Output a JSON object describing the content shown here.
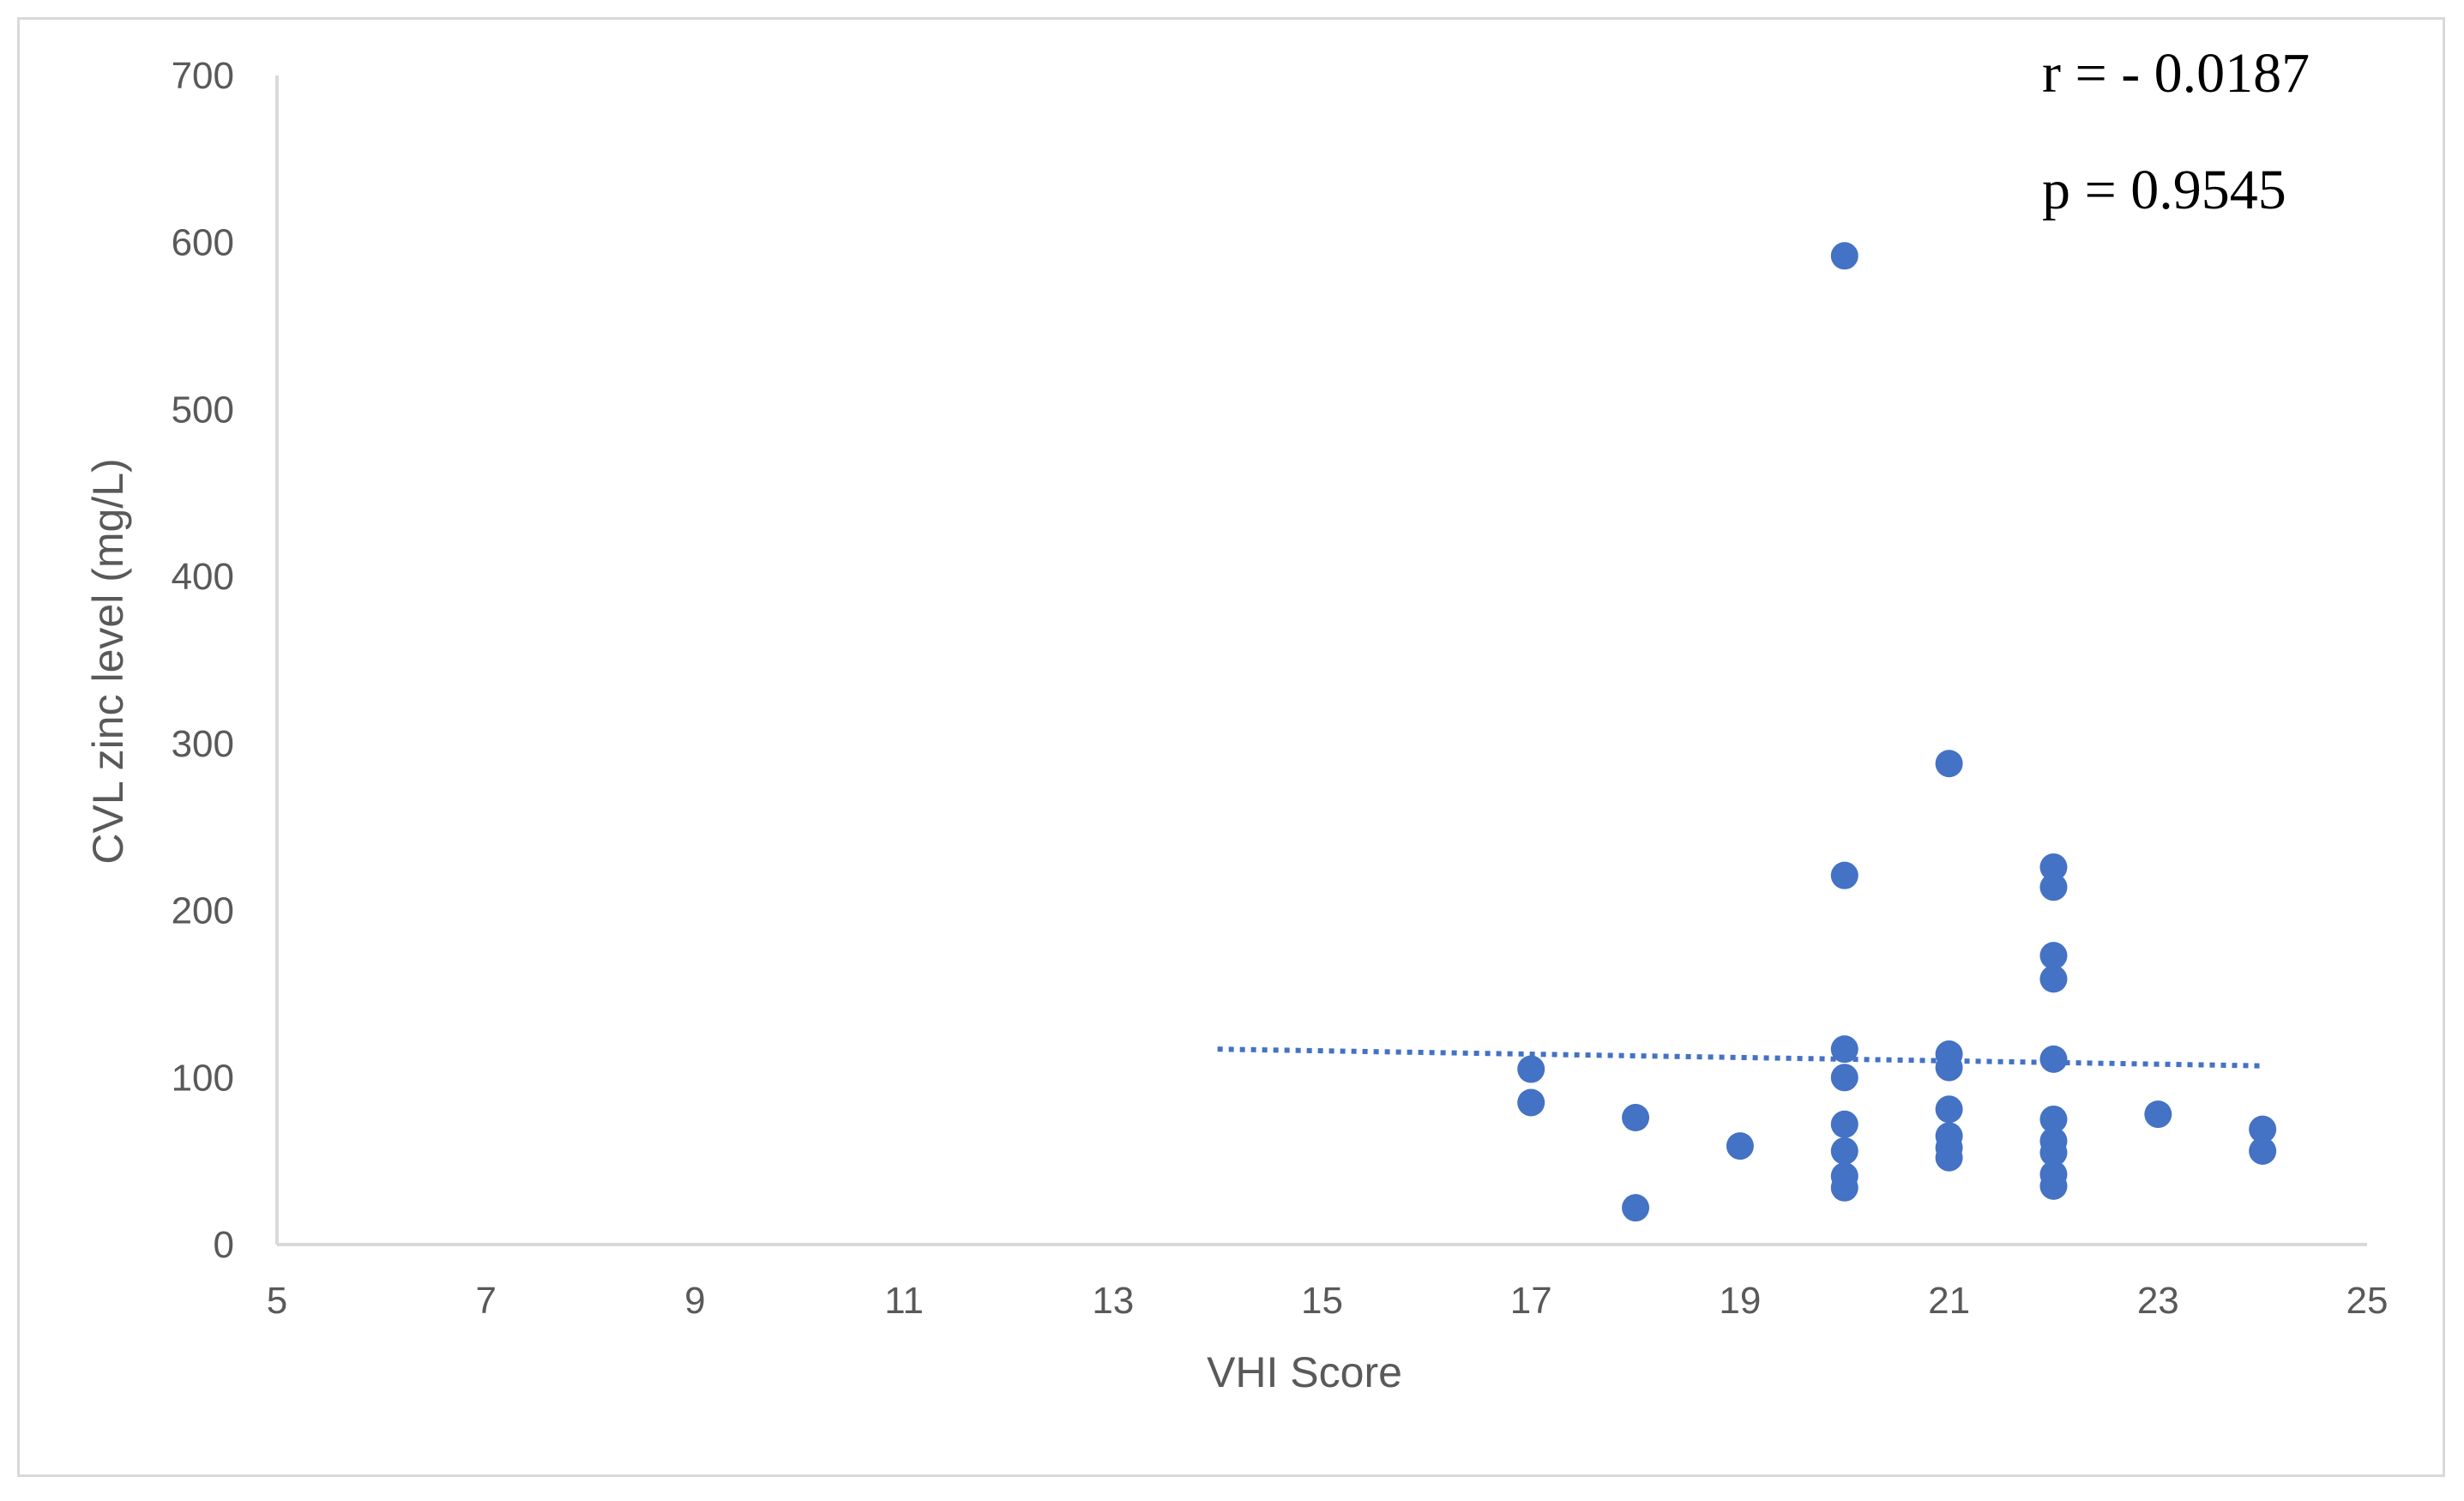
{
  "chart_data": {
    "type": "scatter",
    "xlabel": "VHI Score",
    "ylabel": "CVL zinc level (mg/L)",
    "xlim": [
      5,
      25
    ],
    "ylim": [
      0,
      700
    ],
    "x_ticks": [
      "5",
      "7",
      "9",
      "11",
      "13",
      "15",
      "17",
      "19",
      "21",
      "23",
      "25"
    ],
    "y_ticks": [
      "0",
      "100",
      "200",
      "300",
      "400",
      "500",
      "600",
      "700"
    ],
    "grid": false,
    "point_color": "#4472c4",
    "trendline": {
      "style": "dotted",
      "x": [
        14,
        24
      ],
      "y": [
        117,
        107
      ]
    },
    "points": [
      {
        "x": 17,
        "y": 105
      },
      {
        "x": 17,
        "y": 85
      },
      {
        "x": 18,
        "y": 76
      },
      {
        "x": 18,
        "y": 22
      },
      {
        "x": 19,
        "y": 59
      },
      {
        "x": 20,
        "y": 592
      },
      {
        "x": 20,
        "y": 221
      },
      {
        "x": 20,
        "y": 117
      },
      {
        "x": 20,
        "y": 100
      },
      {
        "x": 20,
        "y": 72
      },
      {
        "x": 20,
        "y": 56
      },
      {
        "x": 20,
        "y": 41
      },
      {
        "x": 20,
        "y": 34
      },
      {
        "x": 21,
        "y": 288
      },
      {
        "x": 21,
        "y": 114
      },
      {
        "x": 21,
        "y": 106
      },
      {
        "x": 21,
        "y": 81
      },
      {
        "x": 21,
        "y": 65
      },
      {
        "x": 21,
        "y": 58
      },
      {
        "x": 21,
        "y": 52
      },
      {
        "x": 22,
        "y": 226
      },
      {
        "x": 22,
        "y": 214
      },
      {
        "x": 22,
        "y": 173
      },
      {
        "x": 22,
        "y": 159
      },
      {
        "x": 22,
        "y": 111
      },
      {
        "x": 22,
        "y": 75
      },
      {
        "x": 22,
        "y": 62
      },
      {
        "x": 22,
        "y": 55
      },
      {
        "x": 22,
        "y": 42
      },
      {
        "x": 22,
        "y": 35
      },
      {
        "x": 23,
        "y": 78
      },
      {
        "x": 24,
        "y": 69
      },
      {
        "x": 24,
        "y": 56
      }
    ]
  },
  "annotations": {
    "r": "r = - 0.0187",
    "p": "p = 0.9545"
  }
}
